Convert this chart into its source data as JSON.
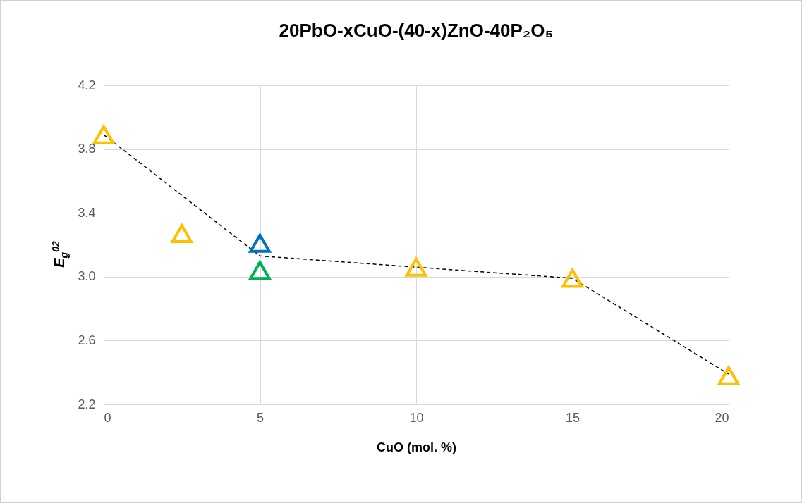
{
  "chart_data": {
    "type": "scatter",
    "title": "20PbO-xCuO-(40-x)ZnO-40P₂O₅",
    "xlabel": "CuO (mol. %)",
    "ylabel": "E$_{g}$$^{02}$",
    "xlim": [
      0,
      20
    ],
    "xticks": [
      0,
      5,
      10,
      15,
      20
    ],
    "ylim": [
      2.2,
      4.2
    ],
    "yticks": [
      {
        "value": 2.2,
        "label": "2.2"
      },
      {
        "value": 2.6,
        "label": "2.6"
      },
      {
        "value": 3,
        "label": "3.0"
      },
      {
        "value": 3.4,
        "label": "3.4"
      },
      {
        "value": 3.8,
        "label": "3.8"
      },
      {
        "value": 4.2,
        "label": "4.2"
      }
    ],
    "grid": true,
    "marker": "triangle",
    "series": [
      {
        "type": "line",
        "color": "#000000",
        "line_style": "dashed",
        "marker": "none",
        "x": [
          0,
          5,
          15,
          20
        ],
        "values": [
          3.89,
          3.13,
          2.99,
          2.39
        ]
      },
      {
        "color": "#ffc000",
        "x": [
          0,
          2.5,
          10,
          15,
          20
        ],
        "values": [
          3.89,
          3.27,
          3.06,
          2.99,
          2.38
        ]
      },
      {
        "color": "#0070c0",
        "x": [
          5
        ],
        "values": [
          3.21
        ]
      },
      {
        "color": "#00b050",
        "x": [
          5
        ],
        "values": [
          3.04
        ]
      }
    ]
  }
}
